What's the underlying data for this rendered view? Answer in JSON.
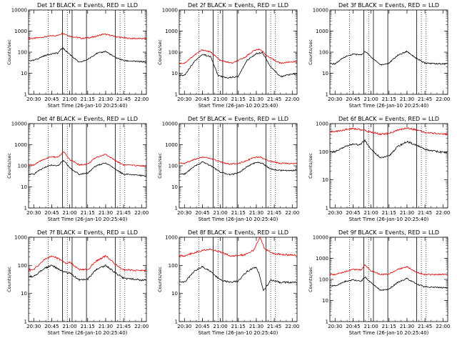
{
  "figure": {
    "xticks": [
      "20:30",
      "20:45",
      "21:00",
      "21:15",
      "21:30",
      "21:45",
      "22:00"
    ],
    "xlabel": "Start Time (26-Jan-10 20:25:40)",
    "ylabel": "Counts/sec",
    "series_colors": {
      "events": "#000000",
      "lld": "#e00000"
    }
  },
  "chart_data": [
    {
      "type": "line",
      "title": "Det 1f BLACK = Events, RED = LLD",
      "ylim": [
        1,
        10000
      ],
      "yscale": "log",
      "yticks": [
        "1",
        "10",
        "100",
        "1000",
        "10000"
      ],
      "series": [
        {
          "key": "lld",
          "x": [
            "20:30",
            "20:38",
            "20:45",
            "20:50",
            "20:54",
            "21:00",
            "21:10",
            "21:20",
            "21:28",
            "21:33",
            "21:40",
            "21:50",
            "22:00"
          ],
          "y": [
            450,
            520,
            600,
            620,
            800,
            580,
            450,
            520,
            720,
            650,
            520,
            450,
            440
          ]
        },
        {
          "key": "events",
          "x": [
            "20:30",
            "20:38",
            "20:45",
            "20:50",
            "20:54",
            "21:00",
            "21:08",
            "21:15",
            "21:22",
            "21:30",
            "21:37",
            "21:45",
            "22:00"
          ],
          "y": [
            40,
            65,
            85,
            90,
            160,
            80,
            32,
            45,
            85,
            110,
            60,
            40,
            35
          ]
        }
      ]
    },
    {
      "type": "line",
      "title": "Det 2f BLACK = Events, RED = LLD",
      "ylim": [
        1,
        10000
      ],
      "yscale": "log",
      "yticks": [
        "1",
        "10",
        "100",
        "1000",
        "10000"
      ],
      "series": [
        {
          "key": "lld",
          "x": [
            "20:30",
            "20:38",
            "20:45",
            "20:52",
            "21:00",
            "21:10",
            "21:20",
            "21:28",
            "21:33",
            "21:40",
            "21:50",
            "22:00"
          ],
          "y": [
            30,
            70,
            130,
            100,
            40,
            30,
            55,
            120,
            140,
            60,
            30,
            35
          ]
        },
        {
          "key": "events",
          "x": [
            "20:30",
            "20:38",
            "20:45",
            "20:52",
            "20:58",
            "21:05",
            "21:15",
            "21:22",
            "21:30",
            "21:35",
            "21:42",
            "21:50",
            "22:00"
          ],
          "y": [
            8,
            35,
            80,
            60,
            8,
            6,
            7,
            40,
            85,
            100,
            20,
            7,
            9
          ]
        }
      ]
    },
    {
      "type": "line",
      "title": "Det 3f BLACK = Events, RED = LLD",
      "ylim": [
        1,
        10000
      ],
      "yscale": "log",
      "yticks": [
        "1",
        "10",
        "100",
        "1000",
        "10000"
      ],
      "series": [
        {
          "key": "events",
          "x": [
            "20:30",
            "20:38",
            "20:45",
            "20:52",
            "20:55",
            "21:00",
            "21:08",
            "21:15",
            "21:22",
            "21:30",
            "21:38",
            "21:45",
            "22:00"
          ],
          "y": [
            28,
            60,
            80,
            75,
            110,
            60,
            25,
            30,
            70,
            110,
            50,
            30,
            28
          ]
        }
      ]
    },
    {
      "type": "line",
      "title": "Det 4f BLACK = Events, RED = LLD",
      "ylim": [
        1,
        10000
      ],
      "yscale": "log",
      "yticks": [
        "1",
        "10",
        "100",
        "1000",
        "10000"
      ],
      "series": [
        {
          "key": "lld",
          "x": [
            "20:30",
            "20:38",
            "20:45",
            "20:50",
            "20:55",
            "21:00",
            "21:08",
            "21:15",
            "21:22",
            "21:30",
            "21:38",
            "21:45",
            "22:00"
          ],
          "y": [
            110,
            200,
            270,
            250,
            450,
            200,
            110,
            120,
            250,
            350,
            180,
            110,
            100
          ]
        },
        {
          "key": "events",
          "x": [
            "20:30",
            "20:38",
            "20:45",
            "20:50",
            "20:55",
            "21:00",
            "21:08",
            "21:15",
            "21:22",
            "21:30",
            "21:38",
            "21:45",
            "22:00"
          ],
          "y": [
            40,
            80,
            110,
            100,
            180,
            80,
            40,
            45,
            100,
            140,
            70,
            40,
            35
          ]
        }
      ]
    },
    {
      "type": "line",
      "title": "Det 5f BLACK = Events, RED = LLD",
      "ylim": [
        1,
        10000
      ],
      "yscale": "log",
      "yticks": [
        "1",
        "10",
        "100",
        "1000",
        "10000"
      ],
      "series": [
        {
          "key": "lld",
          "x": [
            "20:30",
            "20:38",
            "20:45",
            "20:52",
            "21:00",
            "21:08",
            "21:15",
            "21:22",
            "21:28",
            "21:33",
            "21:40",
            "21:50",
            "22:00"
          ],
          "y": [
            130,
            200,
            260,
            220,
            150,
            120,
            130,
            180,
            240,
            260,
            170,
            130,
            130
          ]
        },
        {
          "key": "events",
          "x": [
            "20:30",
            "20:38",
            "20:45",
            "20:52",
            "21:00",
            "21:08",
            "21:15",
            "21:22",
            "21:30",
            "21:35",
            "21:42",
            "21:50",
            "22:00"
          ],
          "y": [
            40,
            90,
            150,
            100,
            50,
            38,
            45,
            90,
            150,
            130,
            70,
            60,
            60
          ]
        }
      ]
    },
    {
      "type": "line",
      "title": "Det 6f BLACK = Events, RED = LLD",
      "ylim": [
        1,
        1000
      ],
      "yscale": "log",
      "yticks": [
        "1",
        "10",
        "100",
        "1000"
      ],
      "series": [
        {
          "key": "lld",
          "x": [
            "20:30",
            "20:38",
            "20:45",
            "20:52",
            "21:00",
            "21:08",
            "21:15",
            "21:22",
            "21:30",
            "21:38",
            "21:45",
            "22:00"
          ],
          "y": [
            520,
            600,
            680,
            600,
            500,
            420,
            450,
            580,
            700,
            600,
            480,
            430
          ]
        },
        {
          "key": "events",
          "x": [
            "20:30",
            "20:38",
            "20:45",
            "20:50",
            "20:55",
            "21:00",
            "21:08",
            "21:15",
            "21:22",
            "21:30",
            "21:38",
            "21:45",
            "22:00"
          ],
          "y": [
            100,
            150,
            190,
            170,
            250,
            120,
            60,
            70,
            150,
            230,
            170,
            120,
            95
          ]
        }
      ]
    },
    {
      "type": "line",
      "title": "Det 7f BLACK = Events, RED = LLD",
      "ylim": [
        1,
        1000
      ],
      "yscale": "log",
      "yticks": [
        "1",
        "10",
        "100",
        "1000"
      ],
      "series": [
        {
          "key": "lld",
          "x": [
            "20:30",
            "20:38",
            "20:45",
            "20:52",
            "20:57",
            "21:00",
            "21:08",
            "21:15",
            "21:22",
            "21:30",
            "21:38",
            "21:45",
            "22:00"
          ],
          "y": [
            70,
            150,
            220,
            160,
            120,
            130,
            70,
            70,
            140,
            220,
            110,
            70,
            65
          ]
        },
        {
          "key": "events",
          "x": [
            "20:30",
            "20:38",
            "20:45",
            "20:52",
            "20:57",
            "21:00",
            "21:08",
            "21:15",
            "21:22",
            "21:30",
            "21:38",
            "21:45",
            "22:00"
          ],
          "y": [
            40,
            75,
            100,
            70,
            55,
            55,
            30,
            32,
            70,
            100,
            55,
            35,
            30
          ]
        }
      ]
    },
    {
      "type": "line",
      "title": "Det 8f BLACK = Events, RED = LLD",
      "ylim": [
        1,
        1000
      ],
      "yscale": "log",
      "yticks": [
        "1",
        "10",
        "100",
        "1000"
      ],
      "series": [
        {
          "key": "lld",
          "x": [
            "20:30",
            "20:40",
            "20:50",
            "21:00",
            "21:10",
            "21:20",
            "21:28",
            "21:33",
            "21:37",
            "21:45",
            "22:00"
          ],
          "y": [
            220,
            300,
            380,
            300,
            210,
            240,
            350,
            1000,
            380,
            260,
            230
          ]
        },
        {
          "key": "events",
          "x": [
            "20:30",
            "20:38",
            "20:45",
            "20:52",
            "21:00",
            "21:08",
            "21:15",
            "21:22",
            "21:30",
            "21:33",
            "21:36",
            "21:42",
            "21:50",
            "22:00"
          ],
          "y": [
            25,
            60,
            90,
            60,
            30,
            25,
            28,
            60,
            90,
            40,
            12,
            30,
            25,
            25
          ]
        }
      ]
    },
    {
      "type": "line",
      "title": "Det 9f BLACK = Events, RED = LLD",
      "ylim": [
        1,
        10000
      ],
      "yscale": "log",
      "yticks": [
        "1",
        "10",
        "100",
        "1000",
        "10000"
      ],
      "series": [
        {
          "key": "lld",
          "x": [
            "20:30",
            "20:38",
            "20:45",
            "20:52",
            "20:55",
            "21:00",
            "21:08",
            "21:15",
            "21:22",
            "21:30",
            "21:38",
            "21:45",
            "22:00"
          ],
          "y": [
            170,
            230,
            300,
            280,
            500,
            250,
            170,
            180,
            300,
            400,
            220,
            170,
            170
          ]
        },
        {
          "key": "events",
          "x": [
            "20:30",
            "20:38",
            "20:45",
            "20:52",
            "20:55",
            "21:00",
            "21:08",
            "21:15",
            "21:22",
            "21:30",
            "21:38",
            "21:45",
            "22:00"
          ],
          "y": [
            50,
            80,
            95,
            85,
            130,
            70,
            30,
            35,
            70,
            110,
            60,
            45,
            40
          ]
        }
      ]
    }
  ]
}
